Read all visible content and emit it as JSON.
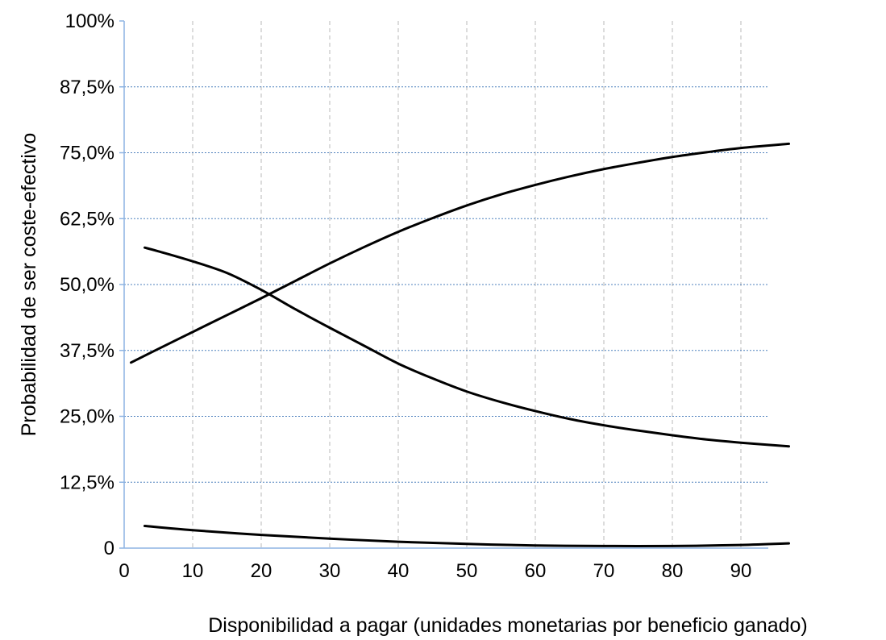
{
  "chart_data": {
    "type": "line",
    "title": "",
    "xlabel": "Disponibilidad a pagar (unidades monetarias por beneficio ganado)",
    "ylabel": "Probabilidad de ser coste-efectivo",
    "xlim": [
      0,
      94
    ],
    "ylim": [
      0,
      1
    ],
    "x_ticks": [
      0,
      10,
      20,
      30,
      40,
      50,
      60,
      70,
      80,
      90
    ],
    "x_tick_labels": [
      "0",
      "10",
      "20",
      "30",
      "40",
      "50",
      "60",
      "70",
      "80",
      "90"
    ],
    "y_ticks": [
      0,
      0.125,
      0.25,
      0.375,
      0.5,
      0.625,
      0.75,
      0.875,
      1
    ],
    "y_tick_labels": [
      "0",
      "12,5%",
      "25,0%",
      "37,5%",
      "50,0%",
      "62,5%",
      "75,0%",
      "87,5%",
      "100%"
    ],
    "grid": {
      "x": "dashed-gray",
      "y": "dashed-blue"
    },
    "legend": "none",
    "line_color": "#000000",
    "series": [
      {
        "x": [
          1,
          5,
          10,
          15,
          20,
          25,
          30,
          35,
          40,
          45,
          50,
          55,
          60,
          65,
          70,
          75,
          80,
          85,
          90,
          97
        ],
        "values": [
          0.352,
          0.378,
          0.41,
          0.442,
          0.474,
          0.507,
          0.54,
          0.571,
          0.6,
          0.626,
          0.65,
          0.671,
          0.689,
          0.705,
          0.719,
          0.731,
          0.742,
          0.751,
          0.759,
          0.767
        ]
      },
      {
        "x": [
          3,
          5,
          10,
          15,
          20,
          25,
          30,
          35,
          40,
          45,
          50,
          55,
          60,
          65,
          70,
          75,
          80,
          85,
          90,
          97
        ],
        "values": [
          0.57,
          0.563,
          0.544,
          0.522,
          0.49,
          0.453,
          0.418,
          0.384,
          0.35,
          0.322,
          0.297,
          0.277,
          0.26,
          0.245,
          0.233,
          0.223,
          0.214,
          0.206,
          0.2,
          0.193
        ]
      },
      {
        "x": [
          3,
          10,
          20,
          30,
          40,
          50,
          60,
          70,
          80,
          90,
          97
        ],
        "values": [
          0.042,
          0.034,
          0.025,
          0.018,
          0.012,
          0.008,
          0.005,
          0.004,
          0.004,
          0.006,
          0.009
        ]
      }
    ]
  }
}
